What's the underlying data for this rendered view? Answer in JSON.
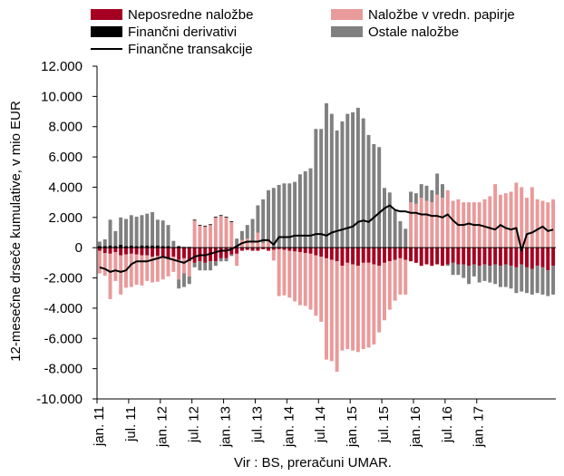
{
  "chart_data": {
    "type": "bar",
    "stacked": true,
    "ylabel": "12-mesečne drseče kumulative, v mio EUR",
    "source": "Vir : BS, preračuni UMAR.",
    "ylim": [
      -10000,
      12000
    ],
    "ytick_step": 2000,
    "ytick_labels": [
      "-10.000",
      "-8.000",
      "-6.000",
      "-4.000",
      "-2.000",
      "0",
      "2.000",
      "4.000",
      "6.000",
      "8.000",
      "10.000",
      "12.000"
    ],
    "x_tick_labels": [
      "jan. 11",
      "jul. 11",
      "jan. 12",
      "jul. 12",
      "jan. 13",
      "jul. 13",
      "jan. 14",
      "jul. 14",
      "jan. 15",
      "jul. 15",
      "jan. 16",
      "jul. 16",
      "jan. 17"
    ],
    "x_tick_every": 6,
    "legend": {
      "position": "top",
      "columns": 2
    },
    "grid": false,
    "colors": {
      "direct": "#a50021",
      "portfolio": "#e99a9a",
      "derivatives": "#000000",
      "other": "#808080",
      "line": "#000000"
    },
    "series": [
      {
        "key": "direct",
        "name": "Neposredne naložbe",
        "values": [
          -200,
          -350,
          -400,
          -300,
          -500,
          -450,
          -400,
          -450,
          -500,
          -500,
          -600,
          -550,
          -600,
          -700,
          -600,
          -800,
          -700,
          -900,
          -1000,
          -900,
          -1000,
          -900,
          -900,
          -700,
          -700,
          -450,
          -400,
          -200,
          -150,
          -200,
          -200,
          -100,
          -200,
          -150,
          -100,
          -150,
          -200,
          -250,
          -300,
          -350,
          -400,
          -500,
          -600,
          -700,
          -800,
          -900,
          -1200,
          -1000,
          -1100,
          -1200,
          -1000,
          -1000,
          -1100,
          -1200,
          -1000,
          -900,
          -800,
          -700,
          -800,
          -900,
          -1000,
          -1200,
          -1100,
          -1200,
          -1100,
          -1200,
          -1100,
          -1000,
          -1100,
          -1100,
          -1200,
          -1100,
          -1200,
          -1100,
          -1200,
          -1100,
          -1200,
          -1100,
          -1200,
          -1300,
          -1100,
          -1300,
          -1400,
          -1200,
          -1300,
          -1500,
          -1200
        ]
      },
      {
        "key": "portfolio",
        "name": "Naložbe v vredn. papirje",
        "values": [
          -1500,
          -1500,
          -3000,
          -1900,
          -2600,
          -2200,
          -2200,
          -2000,
          -2000,
          -1700,
          -1700,
          -1700,
          -1500,
          -1200,
          -1000,
          -1300,
          -1000,
          -1000,
          1800,
          1450,
          1400,
          1500,
          2000,
          2100,
          2000,
          1700,
          -800,
          500,
          600,
          400,
          1000,
          300,
          400,
          -700,
          -3100,
          -3000,
          -3100,
          -3300,
          -3500,
          -3500,
          -3700,
          -4000,
          -4300,
          -6700,
          -6700,
          -7300,
          -5600,
          -5700,
          -5700,
          -5700,
          -5700,
          -5600,
          -5300,
          -4400,
          -3800,
          -3200,
          -2700,
          -2400,
          -2300,
          3000,
          2900,
          3300,
          3100,
          3000,
          3500,
          3300,
          3800,
          3100,
          3200,
          3000,
          3000,
          3000,
          3000,
          3200,
          3400,
          4200,
          3500,
          3600,
          3700,
          4300,
          4000,
          3300,
          4000,
          3200,
          3100,
          3000,
          3200
        ]
      },
      {
        "key": "derivatives",
        "name": "Finančni derivativi",
        "values": [
          100,
          100,
          150,
          100,
          200,
          100,
          150,
          100,
          150,
          150,
          150,
          150,
          100,
          100,
          50,
          100,
          50,
          50,
          50,
          50,
          50,
          50,
          50,
          50,
          50,
          50,
          0,
          0,
          0,
          0,
          0,
          0,
          0,
          50,
          50,
          50,
          50,
          50,
          50,
          50,
          50,
          50,
          50,
          50,
          50,
          50,
          50,
          50,
          50,
          50,
          50,
          50,
          50,
          50,
          50,
          50,
          50,
          50,
          50,
          0,
          0,
          0,
          0,
          0,
          0,
          0,
          0,
          0,
          0,
          0,
          0,
          0,
          0,
          0,
          0,
          0,
          0,
          0,
          0,
          0,
          0,
          0,
          0,
          0,
          0,
          0,
          0
        ]
      },
      {
        "key": "other",
        "name": "Ostale naložbe",
        "values": [
          300,
          450,
          1700,
          1000,
          1800,
          1800,
          2000,
          1950,
          2000,
          2100,
          2200,
          1700,
          1700,
          1400,
          400,
          -600,
          -900,
          -500,
          -300,
          -600,
          -500,
          -600,
          -300,
          -200,
          -200,
          -100,
          600,
          600,
          900,
          1500,
          1800,
          2900,
          3400,
          3900,
          4100,
          4200,
          4200,
          4300,
          4800,
          5000,
          5200,
          7800,
          7800,
          9500,
          8800,
          7700,
          8300,
          8800,
          8900,
          9200,
          8500,
          7400,
          6800,
          6600,
          3900,
          3600,
          2400,
          1700,
          1200,
          700,
          700,
          900,
          1000,
          800,
          1400,
          900,
          -100,
          -800,
          -700,
          -900,
          -1200,
          -800,
          -1100,
          -1100,
          -1100,
          -1300,
          -1400,
          -1500,
          -1500,
          -1700,
          -1800,
          -1700,
          -1700,
          -1800,
          -1800,
          -1700,
          -1900
        ]
      },
      {
        "key": "line",
        "name": "Finančne transakcije",
        "type": "line",
        "values": [
          -1300,
          -1400,
          -1600,
          -1500,
          -1600,
          -1500,
          -1100,
          -900,
          -900,
          -900,
          -800,
          -700,
          -600,
          -700,
          -800,
          -900,
          -1000,
          -800,
          -600,
          -500,
          -500,
          -400,
          -300,
          -200,
          -200,
          -100,
          100,
          300,
          400,
          400,
          400,
          500,
          500,
          200,
          700,
          700,
          700,
          800,
          800,
          800,
          800,
          900,
          900,
          800,
          1000,
          1100,
          1200,
          1300,
          1400,
          1700,
          1800,
          1700,
          2000,
          2300,
          2600,
          2800,
          2500,
          2400,
          2400,
          2300,
          2300,
          2200,
          2200,
          2100,
          2100,
          2000,
          2200,
          1800,
          1500,
          1500,
          1600,
          1500,
          1500,
          1400,
          1300,
          1200,
          1500,
          1300,
          1200,
          1300,
          -200,
          900,
          1000,
          1200,
          1400,
          1100,
          1200
        ]
      }
    ]
  }
}
